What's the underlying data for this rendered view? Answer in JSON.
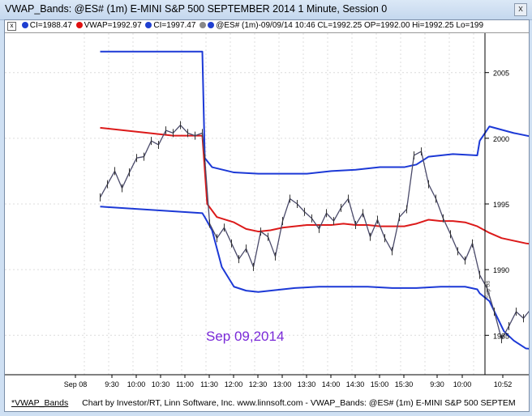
{
  "window": {
    "title": "VWAP_Bands: @ES# (1m) E-MINI S&P 500 SEPTEMBER 2014 1 Minute, Session 0",
    "close_label": "x"
  },
  "legend": {
    "close_label": "x",
    "items": [
      {
        "text": "CI=1988.47",
        "color": "#1f3fd0"
      },
      {
        "text": "VWAP=1992.97",
        "color": "#e01010"
      },
      {
        "text": "CI=1997.47",
        "color": "#1f3fd0"
      },
      {
        "text": "@ES# (1m)-09/09/14 10:46 CL=1992.25 OP=1992.00 Hi=1992.25 Lo=199",
        "color": "#1f3fd0"
      }
    ]
  },
  "footer": {
    "tab_label": "*VWAP_Bands",
    "credit": "Chart by Investor/RT, Linn Software, Inc. www.linnsoft.com - VWAP_Bands: @ES# (1m) E-MINI S&P 500 SEPTEM"
  },
  "chart_data": {
    "type": "line",
    "annotation": "Sep 09,2014",
    "ylim": [
      1982,
      2008
    ],
    "y_ticks": [
      1985,
      1990,
      1995,
      2000,
      2005
    ],
    "x_ticks": [
      "Sep 08",
      "9:30",
      "10:00",
      "10:30",
      "11:00",
      "11:30",
      "12:00",
      "12:30",
      "13:00",
      "13:30",
      "14:00",
      "14:30",
      "15:00",
      "15:30",
      "9:30",
      "10:00",
      "10:52"
    ],
    "side_marker": "Sep 08",
    "grid": true,
    "colors": {
      "upper_band": "#1c39d6",
      "vwap": "#dc1a1a",
      "lower_band": "#1c39d6",
      "price": "#4a4a6a"
    },
    "series": [
      {
        "name": "CI",
        "role": "upper_band",
        "x": [
          0,
          4.2,
          4.3,
          4.6,
          5.5,
          6.5,
          7.5,
          8.5,
          9.5,
          10.5,
          11.5,
          12.5,
          13.0,
          13.5,
          14.5,
          15.5,
          15.6,
          16.0,
          16.6,
          17.0,
          17.8,
          18.5
        ],
        "y": [
          2006.6,
          2006.6,
          1998.5,
          1997.8,
          1997.4,
          1997.3,
          1997.3,
          1997.3,
          1997.5,
          1997.6,
          1997.8,
          1997.8,
          1998.0,
          1998.6,
          1998.8,
          1998.7,
          1999.8,
          2000.9,
          2000.6,
          2000.4,
          2000.1,
          2000.0
        ]
      },
      {
        "name": "VWAP",
        "role": "vwap",
        "x": [
          0,
          1.0,
          2.0,
          3.0,
          4.2,
          4.4,
          4.8,
          5.5,
          6.0,
          6.5,
          7.0,
          7.5,
          8.0,
          8.5,
          9.0,
          9.5,
          10.0,
          10.5,
          11.0,
          11.5,
          12.0,
          12.5,
          13.0,
          13.5,
          14.0,
          14.5,
          15.0,
          15.5,
          16.0,
          16.5,
          17.0,
          17.5,
          18.0,
          18.5
        ],
        "y": [
          2000.8,
          2000.6,
          2000.4,
          2000.2,
          2000.2,
          1995.0,
          1994.0,
          1993.6,
          1993.1,
          1992.9,
          1993.0,
          1993.2,
          1993.3,
          1993.4,
          1993.4,
          1993.4,
          1993.5,
          1993.4,
          1993.4,
          1993.3,
          1993.3,
          1993.3,
          1993.5,
          1993.8,
          1993.7,
          1993.7,
          1993.6,
          1993.3,
          1992.8,
          1992.4,
          1992.2,
          1992.0,
          1991.9,
          1991.8
        ]
      },
      {
        "name": "CI",
        "role": "lower_band",
        "x": [
          0,
          4.2,
          4.3,
          4.6,
          5.0,
          5.5,
          6.0,
          6.5,
          7.0,
          8.0,
          9.0,
          10.0,
          11.0,
          12.0,
          13.0,
          14.0,
          15.0,
          15.5,
          15.6,
          16.0,
          16.6,
          17.0,
          17.5,
          18.5
        ],
        "y": [
          1994.8,
          1994.3,
          1994.0,
          1993.0,
          1990.2,
          1988.7,
          1988.4,
          1988.3,
          1988.4,
          1988.6,
          1988.7,
          1988.7,
          1988.7,
          1988.6,
          1988.6,
          1988.7,
          1988.7,
          1988.5,
          1988.2,
          1987.6,
          1985.3,
          1984.6,
          1984.0,
          1983.8
        ]
      },
      {
        "name": "@ES# (1m)",
        "role": "price",
        "x": [
          0,
          0.3,
          0.6,
          0.9,
          1.2,
          1.5,
          1.8,
          2.1,
          2.4,
          2.7,
          3.0,
          3.3,
          3.6,
          3.9,
          4.2,
          4.3,
          4.5,
          4.8,
          5.1,
          5.4,
          5.7,
          6.0,
          6.3,
          6.6,
          6.9,
          7.2,
          7.5,
          7.8,
          8.1,
          8.4,
          8.7,
          9.0,
          9.3,
          9.6,
          9.9,
          10.2,
          10.5,
          10.8,
          11.1,
          11.4,
          11.7,
          12.0,
          12.3,
          12.6,
          12.9,
          13.2,
          13.5,
          13.8,
          14.1,
          14.4,
          14.7,
          15.0,
          15.3,
          15.6,
          15.9,
          16.2,
          16.5,
          16.8,
          17.1,
          17.4,
          17.7,
          18.0,
          18.3
        ],
        "y": [
          1995.5,
          1996.5,
          1997.5,
          1996.2,
          1997.4,
          1998.5,
          1998.6,
          1999.8,
          1999.5,
          2000.6,
          2000.4,
          2001.0,
          2000.4,
          2000.2,
          2000.4,
          1998.5,
          1993.5,
          1992.4,
          1993.2,
          1992.0,
          1990.8,
          1991.6,
          1990.2,
          1992.9,
          1992.5,
          1991.0,
          1993.7,
          1995.4,
          1995.0,
          1994.4,
          1993.9,
          1993.1,
          1994.3,
          1993.7,
          1994.7,
          1995.4,
          1993.4,
          1994.3,
          1992.5,
          1993.8,
          1992.4,
          1991.4,
          1994.0,
          1994.6,
          1998.7,
          1999.0,
          1996.5,
          1995.4,
          1993.9,
          1992.7,
          1991.4,
          1990.7,
          1992.0,
          1989.6,
          1988.6,
          1986.8,
          1984.7,
          1985.7,
          1986.8,
          1986.3,
          1987.0,
          1987.9,
          1989.5
        ]
      }
    ]
  }
}
